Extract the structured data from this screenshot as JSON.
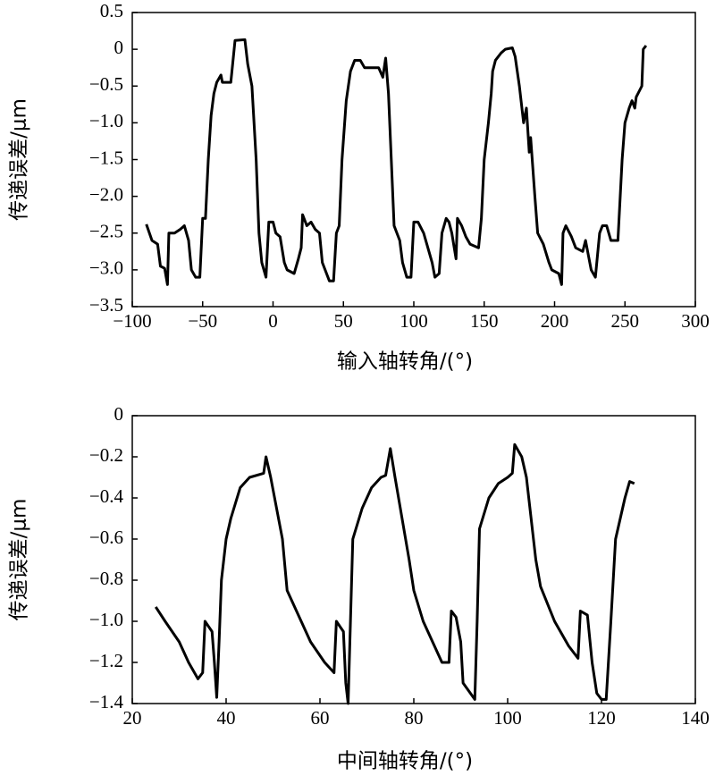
{
  "chart_data": [
    {
      "type": "line",
      "xlabel": "输入轴转角/(°)",
      "ylabel": "传递误差/μm",
      "xlim": [
        -100,
        300
      ],
      "ylim": [
        -3.5,
        0.5
      ],
      "xticks": [
        {
          "value": -100,
          "label": "−100"
        },
        {
          "value": -50,
          "label": "−50"
        },
        0,
        50,
        100,
        150,
        200,
        250,
        300
      ],
      "yticks": [
        0.5,
        0,
        {
          "value": -0.5,
          "label": "−0.5"
        },
        {
          "value": -1.0,
          "label": "−1.0"
        },
        {
          "value": -1.5,
          "label": "−1.5"
        },
        {
          "value": -2.0,
          "label": "−2.0"
        },
        {
          "value": -2.5,
          "label": "−2.5"
        },
        {
          "value": -3.0,
          "label": "−3.0"
        },
        {
          "value": -3.5,
          "label": "−3.5"
        }
      ],
      "series": [
        {
          "color": "#000000",
          "x": [
            -90,
            -86,
            -82,
            -80,
            -77,
            -75,
            -74,
            -70,
            -66,
            -63,
            -60,
            -58,
            -55,
            -52,
            -50,
            -48,
            -46,
            -44,
            -42,
            -40,
            -37,
            -36,
            -30,
            -27,
            -20,
            -18,
            -15,
            -12,
            -10,
            -8,
            -5,
            -3,
            0,
            2,
            5,
            8,
            10,
            15,
            18,
            20,
            21,
            24,
            27,
            30,
            33,
            35,
            40,
            43,
            45,
            47,
            49,
            52,
            55,
            58,
            62,
            65,
            75,
            78,
            80,
            82,
            84,
            86,
            90,
            92,
            95,
            98,
            100,
            103,
            107,
            110,
            113,
            115,
            118,
            120,
            123,
            125,
            127,
            130,
            131,
            134,
            137,
            140,
            146,
            148,
            150,
            153,
            155,
            156,
            158,
            162,
            165,
            170,
            172,
            175,
            178,
            180,
            182,
            183,
            186,
            188,
            192,
            196,
            198,
            203,
            205,
            206,
            208,
            212,
            215,
            220,
            222,
            226,
            229,
            232,
            234,
            237,
            240,
            245,
            248,
            250,
            253,
            255,
            257,
            258,
            262,
            263,
            265
          ],
          "values": [
            -2.38,
            -2.6,
            -2.65,
            -2.95,
            -2.98,
            -3.2,
            -2.5,
            -2.5,
            -2.45,
            -2.4,
            -2.6,
            -3.0,
            -3.1,
            -3.1,
            -2.3,
            -2.3,
            -1.5,
            -0.9,
            -0.6,
            -0.45,
            -0.35,
            -0.45,
            -0.45,
            0.12,
            0.13,
            -0.2,
            -0.5,
            -1.5,
            -2.5,
            -2.9,
            -3.1,
            -2.35,
            -2.35,
            -2.5,
            -2.55,
            -2.9,
            -3.0,
            -3.05,
            -2.85,
            -2.7,
            -2.25,
            -2.4,
            -2.35,
            -2.45,
            -2.5,
            -2.9,
            -3.15,
            -3.15,
            -2.5,
            -2.4,
            -1.5,
            -0.7,
            -0.3,
            -0.15,
            -0.15,
            -0.25,
            -0.25,
            -0.38,
            -0.12,
            -0.6,
            -1.5,
            -2.4,
            -2.6,
            -2.9,
            -3.1,
            -3.1,
            -2.35,
            -2.35,
            -2.5,
            -2.7,
            -2.9,
            -3.1,
            -3.05,
            -2.5,
            -2.3,
            -2.35,
            -2.5,
            -2.85,
            -2.3,
            -2.4,
            -2.55,
            -2.65,
            -2.7,
            -2.3,
            -1.5,
            -1.0,
            -0.6,
            -0.3,
            -0.15,
            -0.05,
            0.0,
            0.02,
            -0.1,
            -0.5,
            -1.0,
            -0.8,
            -1.4,
            -1.2,
            -2.0,
            -2.5,
            -2.65,
            -2.9,
            -3.0,
            -3.05,
            -3.2,
            -2.5,
            -2.4,
            -2.55,
            -2.7,
            -2.75,
            -2.6,
            -3.0,
            -3.1,
            -2.5,
            -2.4,
            -2.4,
            -2.6,
            -2.6,
            -1.5,
            -1.0,
            -0.8,
            -0.7,
            -0.8,
            -0.65,
            -0.5,
            0.0,
            0.05
          ]
        }
      ]
    },
    {
      "type": "line",
      "xlabel": "中间轴转角/(°)",
      "ylabel": "传递误差/μm",
      "xlim": [
        20,
        140
      ],
      "ylim": [
        -1.4,
        0
      ],
      "xticks": [
        20,
        40,
        60,
        80,
        100,
        120,
        140
      ],
      "yticks": [
        0,
        {
          "value": -0.2,
          "label": "−0.2"
        },
        {
          "value": -0.4,
          "label": "−0.4"
        },
        {
          "value": -0.6,
          "label": "−0.6"
        },
        {
          "value": -0.8,
          "label": "−0.8"
        },
        {
          "value": -1.0,
          "label": "−1.0"
        },
        {
          "value": -1.2,
          "label": "−1.2"
        },
        {
          "value": -1.4,
          "label": "−1.4"
        }
      ],
      "series": [
        {
          "color": "#000000",
          "x": [
            25,
            27,
            30,
            32,
            34,
            35,
            35.5,
            37,
            37.5,
            38,
            38.5,
            39,
            40,
            41,
            43,
            45,
            48,
            48.5,
            49.5,
            52,
            53,
            55,
            58,
            61,
            63,
            63.5,
            65,
            65.5,
            66,
            66.5,
            67,
            69,
            71,
            73,
            74,
            75,
            76,
            79,
            80,
            82,
            85,
            86,
            87.5,
            88,
            89,
            90,
            90.5,
            93,
            93.5,
            94,
            96,
            98,
            100,
            101,
            101.5,
            103,
            104,
            106,
            107,
            110,
            113,
            115,
            115.5,
            117,
            118,
            119,
            120,
            121,
            122,
            123,
            125,
            126,
            127
          ],
          "values": [
            -0.93,
            -1.0,
            -1.1,
            -1.2,
            -1.28,
            -1.25,
            -1.0,
            -1.05,
            -1.2,
            -1.37,
            -1.1,
            -0.8,
            -0.6,
            -0.5,
            -0.35,
            -0.3,
            -0.28,
            -0.2,
            -0.3,
            -0.6,
            -0.85,
            -0.95,
            -1.1,
            -1.2,
            -1.25,
            -1.0,
            -1.05,
            -1.3,
            -1.4,
            -1.0,
            -0.6,
            -0.45,
            -0.35,
            -0.3,
            -0.29,
            -0.16,
            -0.3,
            -0.7,
            -0.85,
            -1.0,
            -1.15,
            -1.2,
            -1.2,
            -0.95,
            -0.98,
            -1.1,
            -1.3,
            -1.38,
            -1.0,
            -0.55,
            -0.4,
            -0.33,
            -0.3,
            -0.28,
            -0.14,
            -0.2,
            -0.3,
            -0.7,
            -0.83,
            -1.0,
            -1.12,
            -1.18,
            -0.95,
            -0.97,
            -1.2,
            -1.35,
            -1.38,
            -1.38,
            -1.0,
            -0.6,
            -0.4,
            -0.32,
            -0.33
          ]
        }
      ]
    }
  ]
}
